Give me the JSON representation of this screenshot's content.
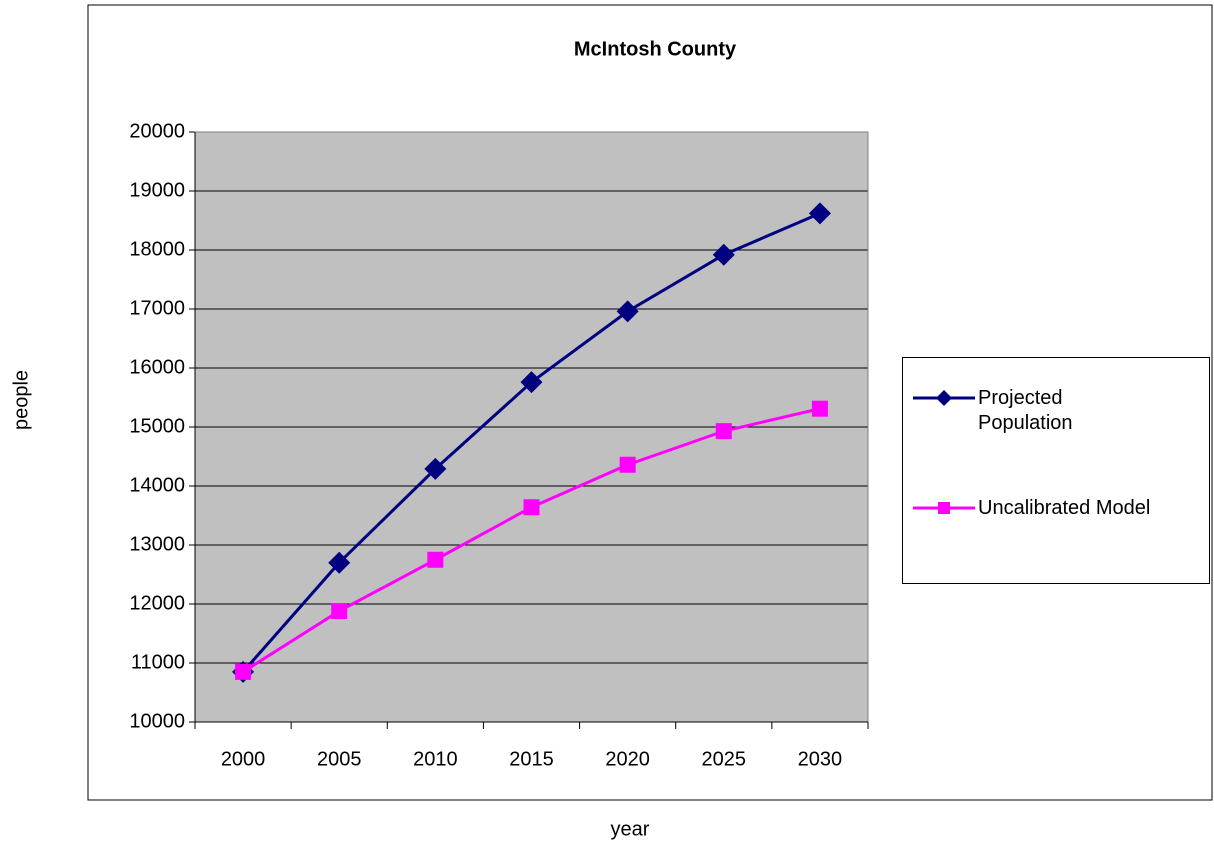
{
  "chart_data": {
    "type": "line",
    "title": "McIntosh County",
    "x_label": "year",
    "y_label": "people",
    "categories": [
      "2000",
      "2005",
      "2010",
      "2015",
      "2020",
      "2025",
      "2030"
    ],
    "series": [
      {
        "name": "Projected Population",
        "color": "#000080",
        "values": [
          10850,
          12700,
          14290,
          15760,
          16960,
          17920,
          18620
        ]
      },
      {
        "name": "Uncalibrated Model",
        "color": "#ff00ff",
        "values": [
          10850,
          11880,
          12750,
          13640,
          14360,
          14930,
          15310
        ]
      }
    ],
    "ylim": [
      10000,
      20000
    ],
    "yticks": [
      10000,
      11000,
      12000,
      13000,
      14000,
      15000,
      16000,
      17000,
      18000,
      19000,
      20000
    ],
    "grid": true,
    "legend": "right"
  }
}
